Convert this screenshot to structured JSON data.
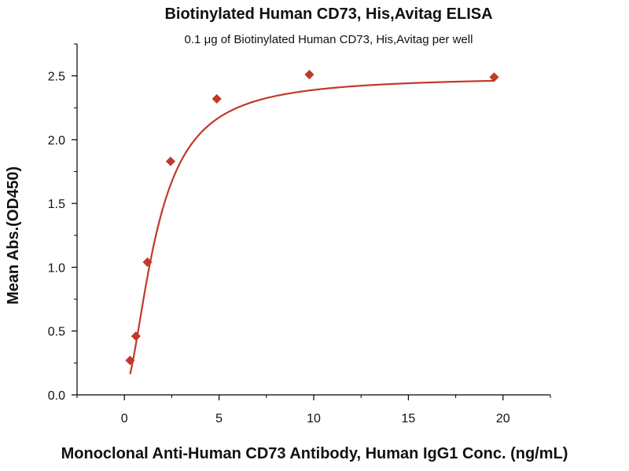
{
  "chart_data": {
    "type": "scatter",
    "title": "Biotinylated Human CD73, His,Avitag ELISA",
    "subtitle": "0.1 μg of Biotinylated Human CD73, His,Avitag per well",
    "xlabel": "Monoclonal Anti-Human CD73 Antibody, Human IgG1 Conc. (ng/mL)",
    "ylabel": "Mean Abs.(OD450)",
    "xlim": [
      -2.5,
      22.5
    ],
    "ylim": [
      0,
      2.75
    ],
    "x_ticks": [
      0,
      5,
      10,
      15,
      20
    ],
    "x_tick_labels": [
      "0",
      "5",
      "10",
      "15",
      "20"
    ],
    "y_ticks": [
      0.0,
      0.5,
      1.0,
      1.5,
      2.0,
      2.5
    ],
    "y_tick_labels": [
      "0.0",
      "0.5",
      "1.0",
      "1.5",
      "2.0",
      "2.5"
    ],
    "grid": false,
    "series": [
      {
        "x": [
          0.3,
          0.61,
          1.22,
          2.44,
          4.88,
          9.77,
          19.53
        ],
        "y": [
          0.27,
          0.46,
          1.04,
          1.83,
          2.32,
          2.51,
          2.49
        ],
        "marker": "diamond",
        "fit": "sigmoidal",
        "color": "#c0392b"
      }
    ]
  }
}
